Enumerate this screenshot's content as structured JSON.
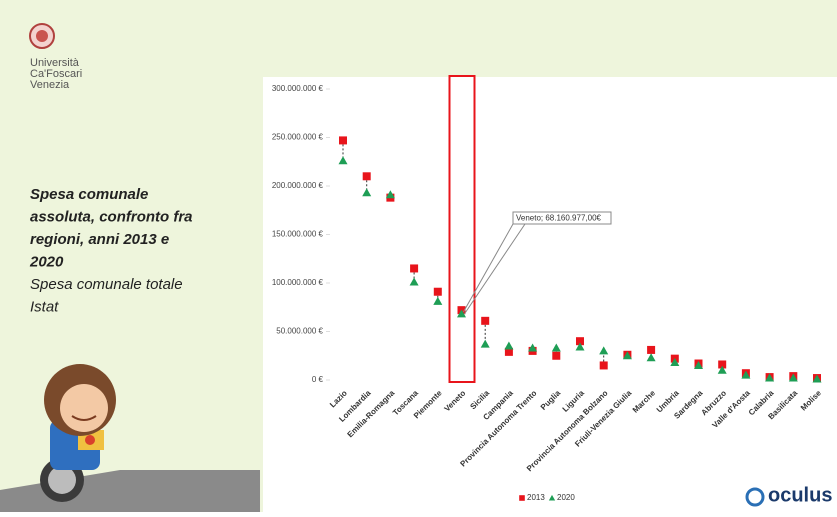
{
  "slide": {
    "university": [
      "Università",
      "Ca'Foscari",
      "Venezia"
    ],
    "title_lines": [
      "Spesa comunale",
      "assoluta, confronto fra",
      "regioni, anni 2013 e",
      "2020"
    ],
    "subtitle_lines": [
      "Spesa comunale totale",
      "Istat"
    ],
    "logo": "oculus"
  },
  "chart_data": {
    "type": "scatter",
    "categories": [
      "Lazio",
      "Lombardia",
      "Emilia-Romagna",
      "Toscana",
      "Piemonte",
      "Veneto",
      "Sicilia",
      "Campania",
      "Provincia Autonoma Trento",
      "Puglia",
      "Liguria",
      "Provincia Autonoma Bolzano",
      "Friuli-Venezia Giulia",
      "Marche",
      "Umbria",
      "Sardegna",
      "Abruzzo",
      "Valle d'Aosta",
      "Calabria",
      "Basilicata",
      "Molise"
    ],
    "series": [
      {
        "name": "2013",
        "color": "#e8141b",
        "marker": "square",
        "values": [
          247000000,
          210000000,
          188000000,
          115000000,
          91000000,
          72000000,
          61000000,
          29000000,
          30000000,
          25000000,
          40000000,
          15000000,
          26000000,
          31000000,
          22000000,
          17000000,
          16000000,
          7000000,
          3000000,
          4000000,
          2000000
        ]
      },
      {
        "name": "2020",
        "color": "#1e9e55",
        "marker": "triangle",
        "values": [
          226000000,
          193000000,
          191000000,
          101000000,
          81000000,
          68160977,
          37000000,
          35000000,
          33000000,
          33000000,
          34000000,
          30000000,
          25000000,
          23000000,
          18000000,
          15000000,
          10000000,
          5000000,
          2000000,
          2000000,
          1000000
        ]
      }
    ],
    "ylim": [
      0,
      300000000
    ],
    "yticks": [
      {
        "value": 0,
        "label": "0 €"
      },
      {
        "value": 50000000,
        "label": "50.000.000 €"
      },
      {
        "value": 100000000,
        "label": "100.000.000 €"
      },
      {
        "value": 150000000,
        "label": "150.000.000 €"
      },
      {
        "value": 200000000,
        "label": "200.000.000 €"
      },
      {
        "value": 250000000,
        "label": "250.000.000 €"
      },
      {
        "value": 300000000,
        "label": "300.000.000 €"
      }
    ],
    "grid": false,
    "annotation": {
      "text": "Veneto; 68.160.977,00€",
      "category": "Veneto"
    },
    "highlight": "Veneto",
    "legend": "bottom"
  }
}
